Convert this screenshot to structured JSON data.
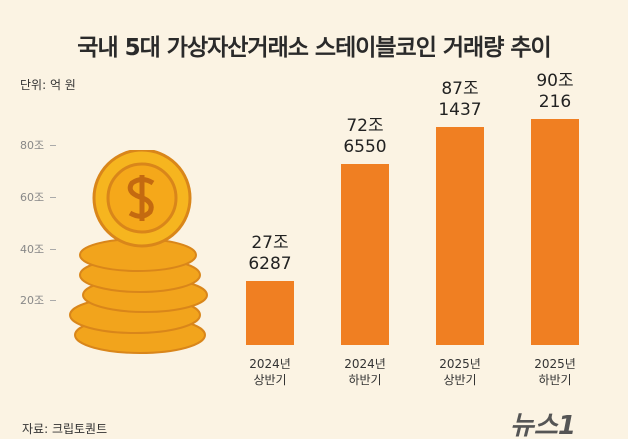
{
  "chart_data": {
    "type": "bar",
    "title": "국내 5대 가상자산거래소 스테이블코인 거래량 추이",
    "unit_note": "단위: 억 원",
    "source": "자료: 크립토퀀트",
    "logo": "뉴스1",
    "categories": [
      "2024년\n상반기",
      "2024년\n하반기",
      "2025년\n상반기",
      "2025년\n하반기"
    ],
    "values": [
      276287,
      726550,
      871437,
      900216
    ],
    "value_labels": [
      "27조\n6287",
      "72조\n6550",
      "87조\n1437",
      "90조\n216"
    ],
    "color": "#f07f22",
    "ylim": [
      0,
      1000000
    ],
    "yticks": [
      {
        "value": 200000,
        "label": "20조"
      },
      {
        "value": 400000,
        "label": "40조"
      },
      {
        "value": 600000,
        "label": "60조"
      },
      {
        "value": 800000,
        "label": "80조"
      }
    ]
  }
}
